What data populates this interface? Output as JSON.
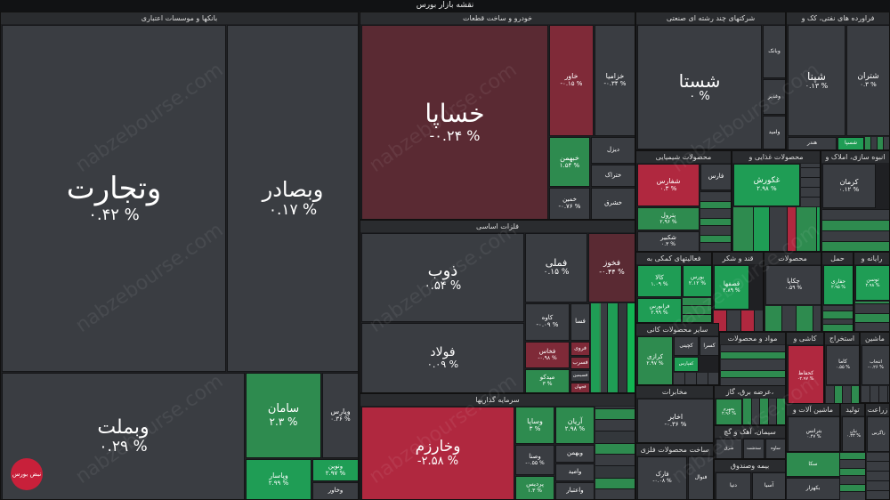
{
  "title": "نقشه بازار بورس",
  "sectors": {
    "banks": "بانکها و موسسات اعتباری",
    "auto": "خودرو و ساخت قطعات",
    "metals": "فلزات اساسی",
    "investments": "سرمایه گذاریها",
    "multi": "شرکتهای چند رشته ای صنعتی",
    "oil": "فراورده های نفتی، کک و",
    "chem": "محصولات شیمیایی",
    "food": "محصولات غذایی و",
    "build": "انبوه سازی، املاک و",
    "support": "فعالیتهای کمکی به",
    "transport": "حمل و نقل",
    "sugar": "قند و شکر",
    "products": "محصولات",
    "haml": "حمل",
    "computer": "رایانه و",
    "other_products": "سایر محصولات کانی",
    "materials": "مواد و محصولات",
    "tiles": "کاشی و",
    "extract": "استخراج",
    "machine": "ماشین",
    "telecom": "مخابرات",
    "electric": "عرضه برق، گاز،",
    "machinery": "ماشین آلات و",
    "pharma": "زراعت",
    "metal_products": "ساخت محصولات فلزی",
    "cement": "سیمان، آهک و گچ",
    "insurance": "بیمه وصندوق",
    "towid": "تولید"
  },
  "tiles": {
    "vtejarat": {
      "sym": "وتجارت",
      "chg": "۰.۴۲ %"
    },
    "vbsader": {
      "sym": "وبصادر",
      "chg": "۰.۱۷ %"
    },
    "vbmellat": {
      "sym": "وبملت",
      "chg": "۰.۲۹ %"
    },
    "saman": {
      "sym": "سامان",
      "chg": "۲.۳ %"
    },
    "vpars": {
      "sym": "وپارس",
      "chg": "۰.۳۶ %"
    },
    "vpasar": {
      "sym": "وپاسار",
      "chg": "۲.۹۹ %"
    },
    "vnovin": {
      "sym": "ونوین",
      "chg": "۲.۹۷ %"
    },
    "vkhavar": {
      "sym": "وخاور",
      "chg": ""
    },
    "khsapa": {
      "sym": "خساپا",
      "chg": "-۰.۲۴ %"
    },
    "khavar": {
      "sym": "خاور",
      "chg": "-۰.۱۵ %"
    },
    "kheramia": {
      "sym": "خزامیا",
      "chg": "-۰.۳۴ %"
    },
    "khbahman": {
      "sym": "خبهمن",
      "chg": "۱.۵۴ %"
    },
    "khdizel": {
      "sym": "دیزل",
      "chg": ""
    },
    "khkhamin": {
      "sym": "خمین",
      "chg": "-۰.۷۶ %"
    },
    "khtrak": {
      "sym": "ختراک",
      "chg": ""
    },
    "khshargh": {
      "sym": "خشرق",
      "chg": ""
    },
    "zob": {
      "sym": "ذوب",
      "chg": "۰.۵۴ %"
    },
    "folad": {
      "sym": "فولاد",
      "chg": "۰.۰۹ %"
    },
    "fameli": {
      "sym": "فملی",
      "chg": "۰.۱۵ %"
    },
    "fkhuz": {
      "sym": "فخوز",
      "chg": "-۰.۴۴ %"
    },
    "kaveh": {
      "sym": "کاوه",
      "chg": "-۰.۰۹ %"
    },
    "fasa": {
      "sym": "فسا",
      "chg": ""
    },
    "fravi": {
      "sym": "فروی",
      "chg": ""
    },
    "fakhas": {
      "sym": "فخاس",
      "chg": "-۰.۹۸ %"
    },
    "fsarb": {
      "sym": "فسرب",
      "chg": ""
    },
    "midko": {
      "sym": "میدکو",
      "chg": "۳ %"
    },
    "fsimin": {
      "sym": "فسیمین",
      "chg": ""
    },
    "fjahan": {
      "sym": "فجهان",
      "chg": ""
    },
    "vkharazm": {
      "sym": "وخارزم",
      "chg": "-۲.۵۸ %"
    },
    "vsapa": {
      "sym": "وساپا",
      "chg": "۳ %"
    },
    "arian": {
      "sym": "آریان",
      "chg": "۲.۹۸ %"
    },
    "vbahman": {
      "sym": "وبهمن",
      "chg": ""
    },
    "vsina": {
      "sym": "وصنا",
      "chg": "-۰.۵۵ %"
    },
    "vsina2": {
      "sym": "وسینا",
      "chg": "۳ %"
    },
    "pardis": {
      "sym": "پردیس",
      "chg": "۱.۳ %"
    },
    "vamid": {
      "sym": "وامید",
      "chg": ""
    },
    "vaetebar": {
      "sym": "واعتبار",
      "chg": ""
    },
    "shasta": {
      "sym": "شستا",
      "chg": "۰ %"
    },
    "vbank": {
      "sym": "وبانک",
      "chg": ""
    },
    "vghadir": {
      "sym": "وغدیر",
      "chg": ""
    },
    "vsmid": {
      "sym": "وامید",
      "chg": ""
    },
    "hendar": {
      "sym": "هندر",
      "chg": ""
    },
    "shpna": {
      "sym": "شپنا",
      "chg": "۰.۱۳ %"
    },
    "shtran": {
      "sym": "شتران",
      "chg": "۰.۳ %"
    },
    "shsina": {
      "sym": "شسپا",
      "chg": ""
    },
    "shfars": {
      "sym": "شفارس",
      "chg": "۰.۳ %"
    },
    "fars": {
      "sym": "فارس",
      "chg": ""
    },
    "patrol": {
      "sym": "پترول",
      "chg": "۲.۹۶ %"
    },
    "shkbir": {
      "sym": "شکبیر",
      "chg": "۰.۳ %"
    },
    "ghkourosh": {
      "sym": "غکورش",
      "chg": "۲.۹۸ %"
    },
    "kerman": {
      "sym": "کرمان",
      "chg": "۰.۱۲ %"
    },
    "kala": {
      "sym": "کالا",
      "chg": "۱.۰۹ %"
    },
    "bours": {
      "sym": "بورس",
      "chg": "۲.۱۲ %"
    },
    "fara": {
      "sym": "فرابورس",
      "chg": "۲.۹۹ %"
    },
    "ghasme": {
      "sym": "قصفها",
      "chg": "۲.۸۹ %"
    },
    "chkapa": {
      "sym": "چکاپا",
      "chg": "۰.۵۹ %"
    },
    "haftari": {
      "sym": "حفاری",
      "chg": "۲.۹۵ %"
    },
    "toson": {
      "sym": "توسن",
      "chg": "۲.۹۸ %"
    },
    "krazi": {
      "sym": "کرازی",
      "chg": "۲.۹۷ %"
    },
    "kchini": {
      "sym": "کچینی",
      "chg": ""
    },
    "kesra": {
      "sym": "کسرا",
      "chg": ""
    },
    "kfpars": {
      "sym": "کفپارس",
      "chg": ""
    },
    "kahmadi": {
      "sym": "کحفاظ",
      "chg": "-۲.۹۷ %"
    },
    "kama": {
      "sym": "کاما",
      "chg": "۰.۵۵ %"
    },
    "entekhab": {
      "sym": "انتخاب",
      "chg": "-۰.۲۶ %"
    },
    "akhaber": {
      "sym": "اخابر",
      "chg": "-۰.۳۶ %"
    },
    "bnirou": {
      "sym": "بجهرم",
      "chg": "۲.۹۶ %"
    },
    "btranas": {
      "sym": "بترانس",
      "chg": "۰.۴۷ %"
    },
    "fark": {
      "sym": "فارک",
      "chg": "-۰.۰۸ %"
    },
    "fnavard": {
      "sym": "فنوال",
      "chg": ""
    },
    "sadasht": {
      "sym": "سدشت",
      "chg": ""
    },
    "shargh": {
      "sym": "شرق",
      "chg": ""
    },
    "saveh": {
      "sym": "ساوه",
      "chg": ""
    },
    "donya": {
      "sym": "دنیا",
      "chg": ""
    },
    "asia": {
      "sym": "آسیا",
      "chg": ""
    },
    "sakkha": {
      "sym": "سکا",
      "chg": ""
    },
    "bkhazar": {
      "sym": "بکهزار",
      "chg": ""
    },
    "nian": {
      "sym": "نیان",
      "chg": "۰.۳۳ %"
    },
    "zagros": {
      "sym": "زاگرس",
      "chg": ""
    }
  },
  "watermark": "nabzebourse.com",
  "logo": "نبض بورس"
}
